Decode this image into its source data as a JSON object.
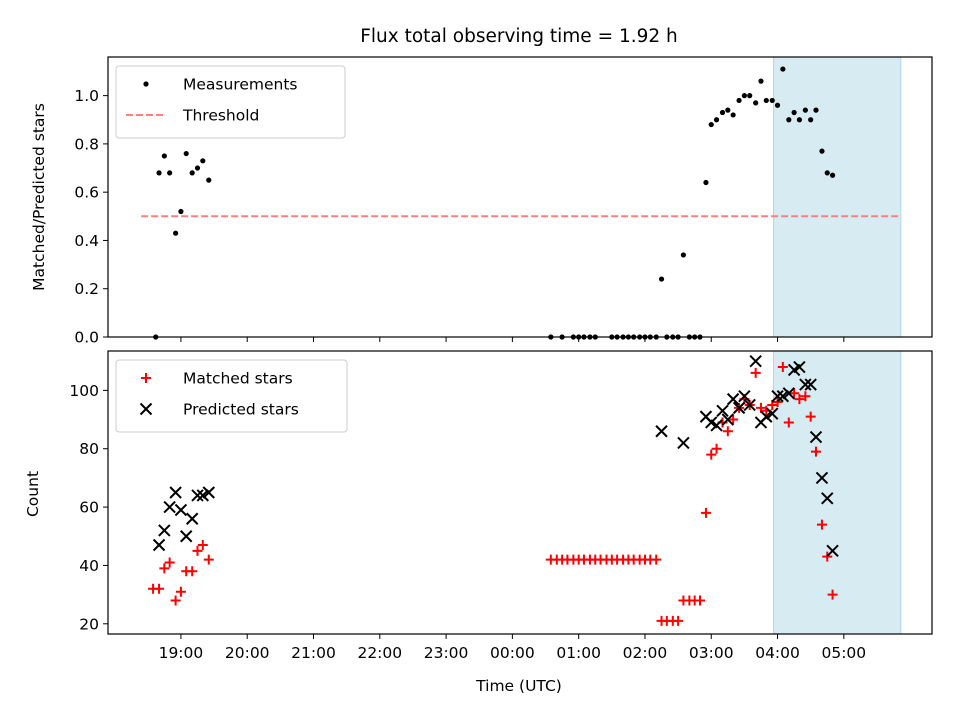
{
  "chart_data": [
    {
      "type": "scatter",
      "title": "Flux total observing time = 1.92 h",
      "xlabel": "",
      "ylabel": "Matched/Predicted stars",
      "ylim": [
        0,
        1.16
      ],
      "yticks": [
        "0.0",
        "0.2",
        "0.4",
        "0.6",
        "0.8",
        "1.0"
      ],
      "legend_position": "top-left",
      "highlight_span": {
        "x0": 27.94,
        "x1": 29.86,
        "color": "#add8e6"
      },
      "threshold": {
        "name": "Threshold",
        "y": 0.5,
        "x0": 18.4,
        "x1": 29.86,
        "color": "#ff7f7f",
        "style": "dashed"
      },
      "series": [
        {
          "name": "Measurements",
          "color": "#000000",
          "marker": "dot",
          "points": [
            [
              18.62,
              0.0
            ],
            [
              18.67,
              0.68
            ],
            [
              18.75,
              0.75
            ],
            [
              18.83,
              0.68
            ],
            [
              18.92,
              0.43
            ],
            [
              19.0,
              0.52
            ],
            [
              19.08,
              0.76
            ],
            [
              19.17,
              0.68
            ],
            [
              19.25,
              0.7
            ],
            [
              19.33,
              0.73
            ],
            [
              19.42,
              0.65
            ],
            [
              24.58,
              0.0
            ],
            [
              24.75,
              0.0
            ],
            [
              24.92,
              0.0
            ],
            [
              25.0,
              0.0
            ],
            [
              25.08,
              0.0
            ],
            [
              25.17,
              0.0
            ],
            [
              25.25,
              0.0
            ],
            [
              25.5,
              0.0
            ],
            [
              25.58,
              0.0
            ],
            [
              25.67,
              0.0
            ],
            [
              25.75,
              0.0
            ],
            [
              25.83,
              0.0
            ],
            [
              25.92,
              0.0
            ],
            [
              26.0,
              0.0
            ],
            [
              26.08,
              0.0
            ],
            [
              26.17,
              0.0
            ],
            [
              26.25,
              0.24
            ],
            [
              26.33,
              0.0
            ],
            [
              26.42,
              0.0
            ],
            [
              26.5,
              0.0
            ],
            [
              26.58,
              0.34
            ],
            [
              26.67,
              0.0
            ],
            [
              26.75,
              0.0
            ],
            [
              26.83,
              0.0
            ],
            [
              26.92,
              0.64
            ],
            [
              27.0,
              0.88
            ],
            [
              27.08,
              0.9
            ],
            [
              27.17,
              0.93
            ],
            [
              27.25,
              0.94
            ],
            [
              27.33,
              0.92
            ],
            [
              27.42,
              0.98
            ],
            [
              27.5,
              1.0
            ],
            [
              27.58,
              1.0
            ],
            [
              27.67,
              0.97
            ],
            [
              27.75,
              1.06
            ],
            [
              27.83,
              0.98
            ],
            [
              27.92,
              0.98
            ],
            [
              28.0,
              0.96
            ],
            [
              28.08,
              1.11
            ],
            [
              28.17,
              0.9
            ],
            [
              28.25,
              0.93
            ],
            [
              28.33,
              0.9
            ],
            [
              28.42,
              0.94
            ],
            [
              28.5,
              0.9
            ],
            [
              28.58,
              0.94
            ],
            [
              28.67,
              0.77
            ],
            [
              28.75,
              0.68
            ],
            [
              28.83,
              0.67
            ]
          ]
        }
      ]
    },
    {
      "type": "scatter",
      "title": "",
      "xlabel": "Time (UTC)",
      "ylabel": "Count",
      "ylim": [
        16.5,
        113.5
      ],
      "yticks": [
        "20",
        "40",
        "60",
        "80",
        "100"
      ],
      "xlim": [
        17.9,
        30.33
      ],
      "xticks": [
        {
          "x": 19,
          "label": "19:00"
        },
        {
          "x": 20,
          "label": "20:00"
        },
        {
          "x": 21,
          "label": "21:00"
        },
        {
          "x": 22,
          "label": "22:00"
        },
        {
          "x": 23,
          "label": "23:00"
        },
        {
          "x": 24,
          "label": "00:00"
        },
        {
          "x": 25,
          "label": "01:00"
        },
        {
          "x": 26,
          "label": "02:00"
        },
        {
          "x": 27,
          "label": "03:00"
        },
        {
          "x": 28,
          "label": "04:00"
        },
        {
          "x": 29,
          "label": "05:00"
        }
      ],
      "legend_position": "top-left",
      "highlight_span": {
        "x0": 27.94,
        "x1": 29.86,
        "color": "#add8e6"
      },
      "series": [
        {
          "name": "Matched stars",
          "color": "#ff0000",
          "marker": "plus",
          "points": [
            [
              18.58,
              32
            ],
            [
              18.67,
              32
            ],
            [
              18.75,
              39
            ],
            [
              18.83,
              41
            ],
            [
              18.92,
              28
            ],
            [
              19.0,
              31
            ],
            [
              19.08,
              38
            ],
            [
              19.17,
              38
            ],
            [
              19.25,
              45
            ],
            [
              19.33,
              47
            ],
            [
              19.42,
              42
            ],
            [
              24.58,
              42
            ],
            [
              24.67,
              42
            ],
            [
              24.75,
              42
            ],
            [
              24.83,
              42
            ],
            [
              24.92,
              42
            ],
            [
              25.0,
              42
            ],
            [
              25.08,
              42
            ],
            [
              25.17,
              42
            ],
            [
              25.25,
              42
            ],
            [
              25.33,
              42
            ],
            [
              25.42,
              42
            ],
            [
              25.5,
              42
            ],
            [
              25.58,
              42
            ],
            [
              25.67,
              42
            ],
            [
              25.75,
              42
            ],
            [
              25.83,
              42
            ],
            [
              25.92,
              42
            ],
            [
              26.0,
              42
            ],
            [
              26.08,
              42
            ],
            [
              26.17,
              42
            ],
            [
              26.25,
              21
            ],
            [
              26.33,
              21
            ],
            [
              26.42,
              21
            ],
            [
              26.5,
              21
            ],
            [
              26.58,
              28
            ],
            [
              26.67,
              28
            ],
            [
              26.75,
              28
            ],
            [
              26.83,
              28
            ],
            [
              26.92,
              58
            ],
            [
              27.0,
              78
            ],
            [
              27.08,
              80
            ],
            [
              27.17,
              89
            ],
            [
              27.25,
              86
            ],
            [
              27.33,
              90
            ],
            [
              27.42,
              94
            ],
            [
              27.5,
              97
            ],
            [
              27.58,
              95
            ],
            [
              27.67,
              106
            ],
            [
              27.75,
              94
            ],
            [
              27.83,
              93
            ],
            [
              27.92,
              95
            ],
            [
              28.0,
              96
            ],
            [
              28.08,
              108
            ],
            [
              28.17,
              89
            ],
            [
              28.25,
              99
            ],
            [
              28.33,
              97
            ],
            [
              28.42,
              98
            ],
            [
              28.5,
              91
            ],
            [
              28.58,
              79
            ],
            [
              28.67,
              54
            ],
            [
              28.75,
              43
            ],
            [
              28.83,
              30
            ]
          ]
        },
        {
          "name": "Predicted stars",
          "color": "#000000",
          "marker": "x",
          "points": [
            [
              18.67,
              47
            ],
            [
              18.75,
              52
            ],
            [
              18.83,
              60
            ],
            [
              18.92,
              65
            ],
            [
              19.0,
              59
            ],
            [
              19.08,
              50
            ],
            [
              19.17,
              56
            ],
            [
              19.25,
              64
            ],
            [
              19.33,
              64
            ],
            [
              19.42,
              65
            ],
            [
              26.25,
              86
            ],
            [
              26.58,
              82
            ],
            [
              26.92,
              91
            ],
            [
              27.0,
              89
            ],
            [
              27.08,
              88
            ],
            [
              27.17,
              93
            ],
            [
              27.25,
              90
            ],
            [
              27.33,
              97
            ],
            [
              27.42,
              94
            ],
            [
              27.5,
              98
            ],
            [
              27.58,
              95
            ],
            [
              27.67,
              110
            ],
            [
              27.75,
              89
            ],
            [
              27.83,
              91
            ],
            [
              27.92,
              92
            ],
            [
              28.0,
              98
            ],
            [
              28.08,
              98
            ],
            [
              28.17,
              99
            ],
            [
              28.25,
              107
            ],
            [
              28.33,
              108
            ],
            [
              28.42,
              102
            ],
            [
              28.5,
              102
            ],
            [
              28.58,
              84
            ],
            [
              28.67,
              70
            ],
            [
              28.75,
              63
            ],
            [
              28.83,
              45
            ]
          ]
        }
      ]
    }
  ]
}
